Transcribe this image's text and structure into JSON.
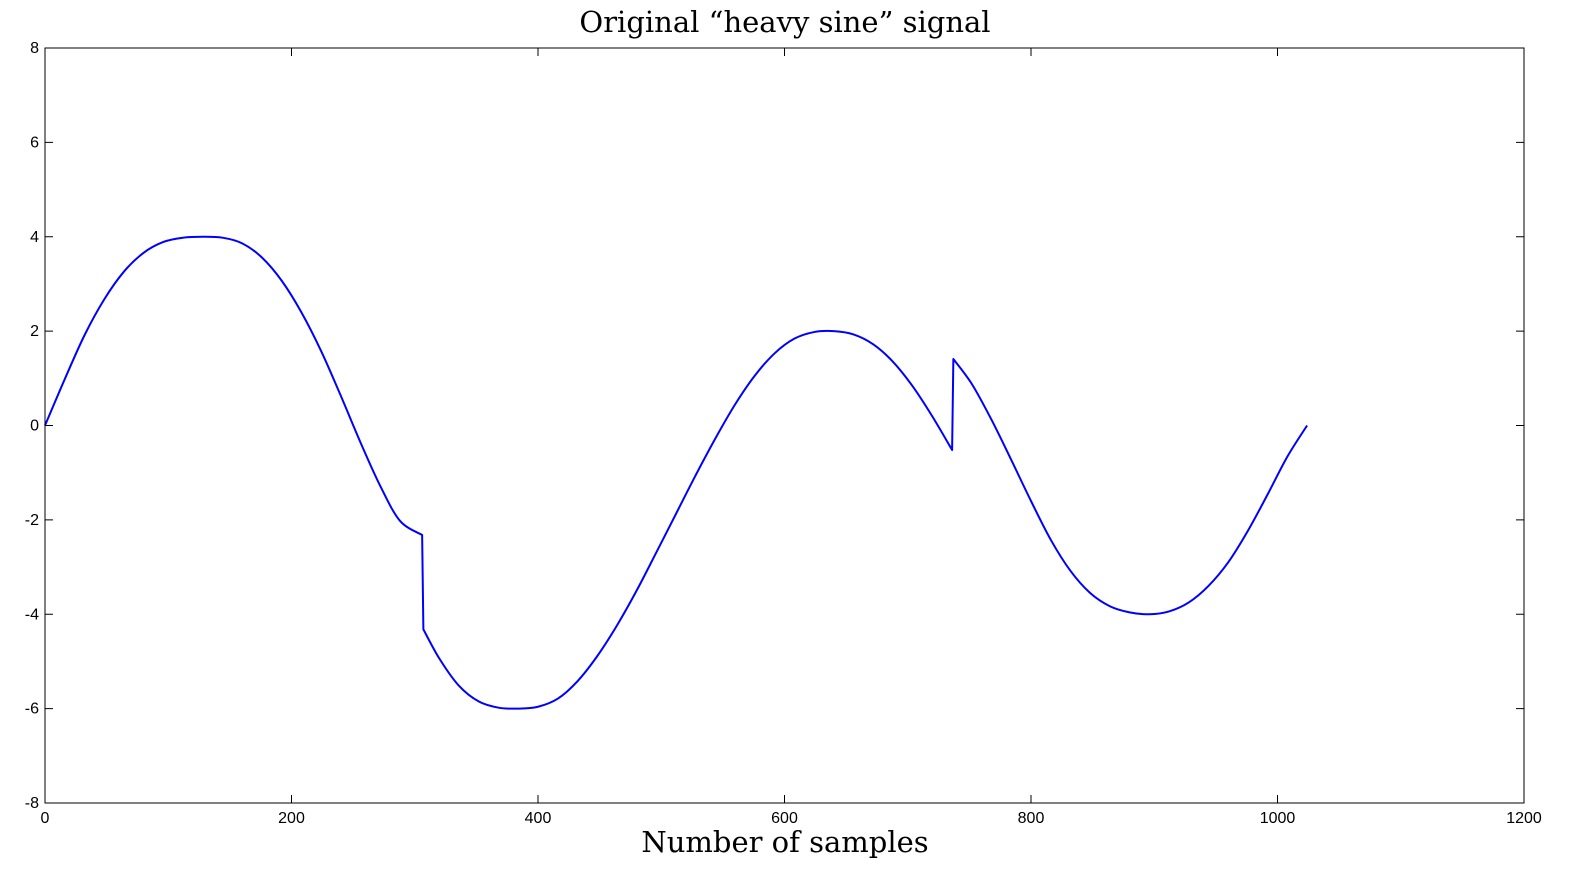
{
  "chart_data": {
    "type": "line",
    "title": "Original “heavy sine” signal",
    "xlabel": "Number of samples",
    "ylabel": "",
    "xlim": [
      0,
      1200
    ],
    "ylim": [
      -8,
      8
    ],
    "xticks": [
      0,
      200,
      400,
      600,
      800,
      1000,
      1200
    ],
    "yticks": [
      -8,
      -6,
      -4,
      -2,
      0,
      2,
      4,
      6,
      8
    ],
    "grid": false,
    "legend": "none",
    "series": [
      {
        "color": "#0000ff",
        "points": [
          [
            0,
            0
          ],
          [
            16,
            0.98
          ],
          [
            32,
            1.91
          ],
          [
            48,
            2.67
          ],
          [
            64,
            3.26
          ],
          [
            80,
            3.66
          ],
          [
            96,
            3.89
          ],
          [
            112,
            3.98
          ],
          [
            128,
            4.0
          ],
          [
            144,
            3.98
          ],
          [
            160,
            3.86
          ],
          [
            176,
            3.56
          ],
          [
            192,
            3.07
          ],
          [
            208,
            2.4
          ],
          [
            224,
            1.58
          ],
          [
            240,
            0.63
          ],
          [
            256,
            -0.36
          ],
          [
            272,
            -1.28
          ],
          [
            288,
            -2.02
          ],
          [
            306,
            -2.32
          ],
          [
            307,
            -4.32
          ],
          [
            320,
            -4.94
          ],
          [
            336,
            -5.52
          ],
          [
            352,
            -5.85
          ],
          [
            368,
            -5.98
          ],
          [
            384,
            -6.0
          ],
          [
            400,
            -5.96
          ],
          [
            416,
            -5.79
          ],
          [
            432,
            -5.42
          ],
          [
            448,
            -4.89
          ],
          [
            464,
            -4.24
          ],
          [
            480,
            -3.5
          ],
          [
            496,
            -2.69
          ],
          [
            512,
            -1.87
          ],
          [
            528,
            -1.05
          ],
          [
            544,
            -0.27
          ],
          [
            560,
            0.45
          ],
          [
            576,
            1.06
          ],
          [
            592,
            1.53
          ],
          [
            608,
            1.84
          ],
          [
            624,
            1.98
          ],
          [
            640,
            2.0
          ],
          [
            656,
            1.93
          ],
          [
            672,
            1.72
          ],
          [
            688,
            1.35
          ],
          [
            704,
            0.83
          ],
          [
            720,
            0.19
          ],
          [
            736,
            -0.52
          ],
          [
            737,
            1.41
          ],
          [
            752,
            0.88
          ],
          [
            768,
            0.12
          ],
          [
            784,
            -0.73
          ],
          [
            800,
            -1.6
          ],
          [
            816,
            -2.42
          ],
          [
            832,
            -3.08
          ],
          [
            848,
            -3.55
          ],
          [
            864,
            -3.83
          ],
          [
            880,
            -3.96
          ],
          [
            896,
            -4.0
          ],
          [
            912,
            -3.94
          ],
          [
            928,
            -3.75
          ],
          [
            944,
            -3.4
          ],
          [
            960,
            -2.9
          ],
          [
            976,
            -2.23
          ],
          [
            992,
            -1.46
          ],
          [
            1008,
            -0.66
          ],
          [
            1024,
            0.0
          ]
        ]
      }
    ]
  }
}
